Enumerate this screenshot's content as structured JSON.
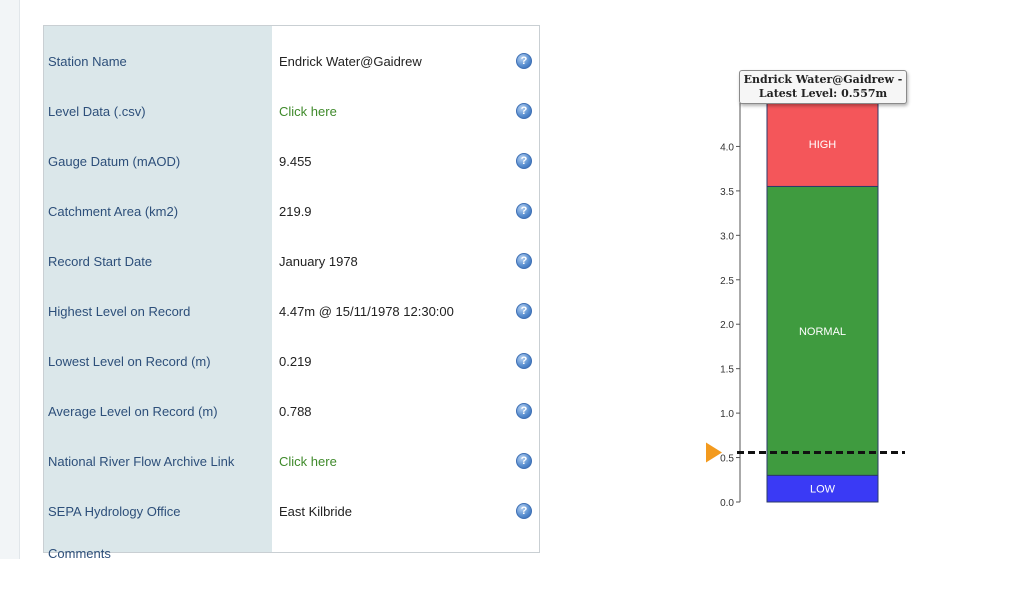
{
  "station_table": {
    "rows": [
      {
        "label": "Station Name",
        "value": "Endrick Water@Gaidrew",
        "is_link": false
      },
      {
        "label": "Level Data (.csv)",
        "value": "Click here",
        "is_link": true
      },
      {
        "label": "Gauge Datum (mAOD)",
        "value": "9.455",
        "is_link": false
      },
      {
        "label": "Catchment Area (km2)",
        "value": "219.9",
        "is_link": false
      },
      {
        "label": "Record Start Date",
        "value": "January 1978",
        "is_link": false
      },
      {
        "label": "Highest Level on Record",
        "value": "4.47m @ 15/11/1978 12:30:00",
        "is_link": false
      },
      {
        "label": "Lowest Level on Record (m)",
        "value": "0.219",
        "is_link": false
      },
      {
        "label": "Average Level on Record (m)",
        "value": "0.788",
        "is_link": false
      },
      {
        "label": "National River Flow Archive Link",
        "value": "Click here",
        "is_link": true
      },
      {
        "label": "SEPA Hydrology Office",
        "value": "East Kilbride",
        "is_link": false
      }
    ],
    "comments_label": "Comments",
    "help_glyph": "?"
  },
  "tooltip": {
    "line1": "Endrick Water@Gaidrew -",
    "line2": "Latest Level: 0.557m"
  },
  "chart_data": {
    "type": "bar",
    "bands": [
      {
        "name": "LOW",
        "from": 0.0,
        "to": 0.3,
        "color": "#3a3af5"
      },
      {
        "name": "NORMAL",
        "from": 0.3,
        "to": 3.55,
        "color": "#3f9b3f"
      },
      {
        "name": "HIGH",
        "from": 3.55,
        "to": 4.5,
        "color": "#f4565a"
      }
    ],
    "latest_level": 0.557,
    "yticks": [
      0.0,
      0.5,
      1.0,
      1.5,
      2.0,
      2.5,
      3.0,
      3.5,
      4.0
    ],
    "ytick_labels": [
      "0.0",
      "0.5",
      "1.0",
      "1.5",
      "2.0",
      "2.5",
      "3.0",
      "3.5",
      "4.0"
    ],
    "ylim": [
      0,
      4.5
    ],
    "marker_color": "#f39a1e"
  }
}
